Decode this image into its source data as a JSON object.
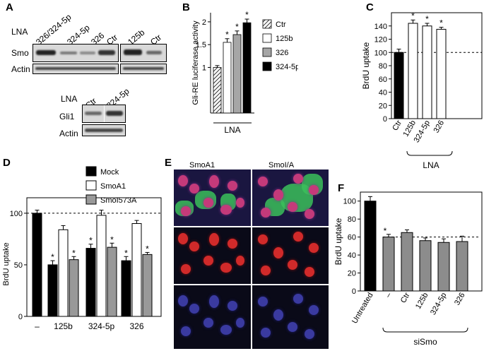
{
  "panels": {
    "A": {
      "label": "A",
      "row_label": "LNA",
      "lanes_left": [
        "326/324-5p",
        "324-5p",
        "326",
        "Ctr"
      ],
      "lanes_right": [
        "125b",
        "Ctr"
      ],
      "smo_label": "Smo",
      "actin_label": "Actin",
      "bottom_lanes": [
        "Ctr",
        "324-5p"
      ],
      "gli_label": "Gli1",
      "actin2_label": "Actin"
    },
    "B": {
      "label": "B",
      "ylabel": "Gli-RE luciferase activity",
      "group_label": "LNA",
      "legend": [
        "Ctr",
        "125b",
        "326",
        "324-5p"
      ]
    },
    "C": {
      "label": "C",
      "ylabel": "BrdU uptake",
      "group_label": "LNA"
    },
    "D": {
      "label": "D",
      "ylabel": "BrdU uptake",
      "legend": [
        "Mock",
        "SmoA1",
        "SmoI573A"
      ]
    },
    "E": {
      "label": "E",
      "col1": "SmoA1",
      "col2": "SmoI/A"
    },
    "F": {
      "label": "F",
      "ylabel": "BrdU uptake",
      "group_label": "siSmo"
    }
  },
  "chart_data": [
    {
      "panel": "B",
      "type": "bar",
      "categories": [
        "Ctr",
        "125b",
        "326",
        "324-5p"
      ],
      "values": [
        1.0,
        1.55,
        1.72,
        1.98
      ],
      "errors": [
        0.04,
        0.08,
        0.08,
        0.08
      ],
      "significant": [
        "",
        "*",
        "*",
        "*"
      ],
      "yticks": [
        1,
        1.5,
        2
      ],
      "ylim": [
        0,
        2.2
      ],
      "colors": [
        "hatch",
        "#ffffff",
        "#a6a6a6",
        "#000000"
      ]
    },
    {
      "panel": "C",
      "type": "bar",
      "categories": [
        "Ctr",
        "125b",
        "324-5p",
        "326"
      ],
      "values": [
        100,
        144,
        140,
        135
      ],
      "errors": [
        5,
        5,
        4,
        3
      ],
      "significant": [
        "",
        "*",
        "*",
        "*"
      ],
      "yticks": [
        0,
        20,
        40,
        60,
        80,
        100,
        120,
        140
      ],
      "ylim": [
        0,
        160
      ],
      "reference_line": 100,
      "colors": [
        "#000000",
        "#ffffff",
        "#ffffff",
        "#ffffff"
      ]
    },
    {
      "panel": "D",
      "type": "bar",
      "categories": [
        "–",
        "125b",
        "324-5p",
        "326"
      ],
      "series": [
        {
          "name": "Mock",
          "values": [
            100,
            50,
            66,
            54
          ],
          "errors": [
            3,
            4,
            4,
            4
          ],
          "color": "#000000"
        },
        {
          "name": "SmoA1",
          "values": [
            null,
            84,
            98,
            90
          ],
          "errors": [
            null,
            4,
            5,
            3
          ],
          "color": "#ffffff"
        },
        {
          "name": "SmoI573A",
          "values": [
            null,
            55,
            67,
            60
          ],
          "errors": [
            null,
            3,
            4,
            2
          ],
          "color": "#999999"
        }
      ],
      "significant": [
        [
          null,
          "*",
          "*",
          "*"
        ],
        [
          null,
          null,
          null,
          null
        ],
        [
          null,
          "*",
          "*",
          "*"
        ]
      ],
      "yticks": [
        0,
        50,
        100
      ],
      "ylim": [
        0,
        115
      ],
      "reference_line": 100
    },
    {
      "panel": "F",
      "type": "bar",
      "categories": [
        "Untreated",
        "–",
        "Ctr",
        "125b",
        "324-5p",
        "326"
      ],
      "values": [
        100,
        60,
        65,
        56,
        54,
        55
      ],
      "errors": [
        5,
        3,
        3,
        3,
        4,
        6
      ],
      "significant": [
        "",
        "*",
        "",
        "",
        "",
        ""
      ],
      "yticks": [
        0,
        20,
        40,
        60,
        80,
        100
      ],
      "ylim": [
        0,
        110
      ],
      "reference_line": 60,
      "colors": [
        "#000000",
        "#8c8c8c",
        "#8c8c8c",
        "#8c8c8c",
        "#8c8c8c",
        "#8c8c8c"
      ]
    }
  ]
}
